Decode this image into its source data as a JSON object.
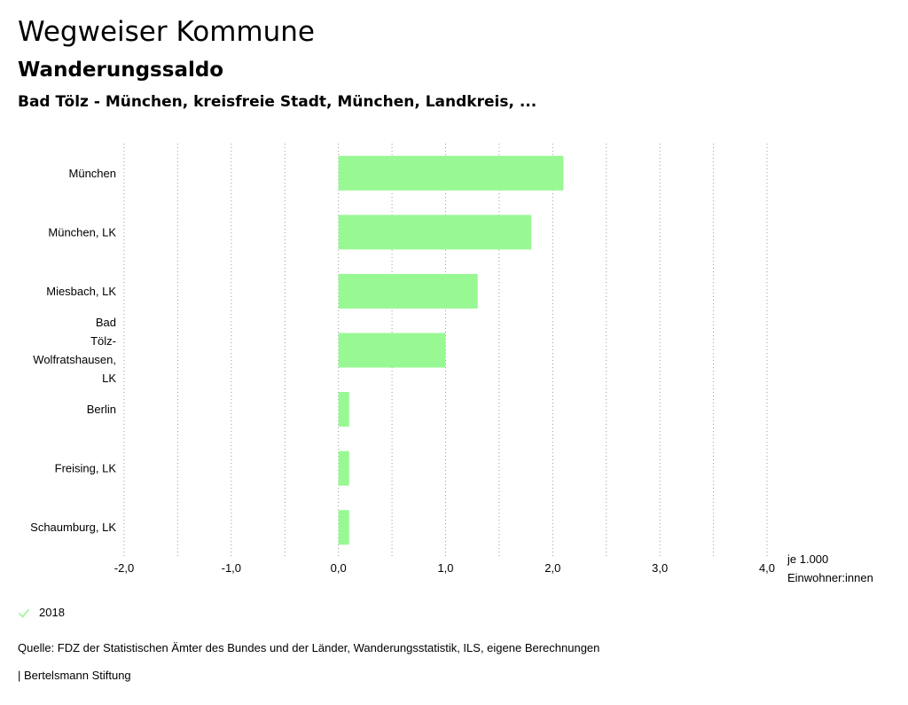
{
  "header": {
    "title": "Wegweiser Kommune",
    "subtitle": "Wanderungssaldo",
    "selection": "Bad Tölz - München, kreisfreie Stadt, München, Landkreis, ..."
  },
  "legend": {
    "label": "2018",
    "check_icon": "check-icon",
    "color": "#98f893"
  },
  "footer": {
    "source": "Quelle: FDZ der Statistischen Ämter des Bundes und der Länder, Wanderungsstatistik, ILS, eigene Berechnungen",
    "brand": "| Bertelsmann Stiftung"
  },
  "chart_data": {
    "type": "bar",
    "orientation": "horizontal",
    "categories": [
      [
        "München"
      ],
      [
        "München, LK"
      ],
      [
        "Miesbach, LK"
      ],
      [
        "Bad",
        "Tölz-",
        "Wolfratshausen,",
        "LK"
      ],
      [
        "Berlin"
      ],
      [
        "Freising, LK"
      ],
      [
        "Schaumburg, LK"
      ]
    ],
    "series": [
      {
        "name": "2018",
        "color": "#98f893",
        "values": [
          2.1,
          1.8,
          1.3,
          1.0,
          0.1,
          0.1,
          0.1
        ]
      }
    ],
    "xlim": [
      -2.0,
      4.0
    ],
    "xticks": [
      -2.0,
      -1.0,
      0.0,
      1.0,
      2.0,
      3.0,
      4.0
    ],
    "xtick_labels": [
      "-2,0",
      "-1,0",
      "0,0",
      "1,0",
      "2,0",
      "3,0",
      "4,0"
    ],
    "xlabel": [
      "je 1.000",
      "Einwohner:innen"
    ],
    "grid": "dotted-vertical",
    "gridline_color": "#999999"
  }
}
